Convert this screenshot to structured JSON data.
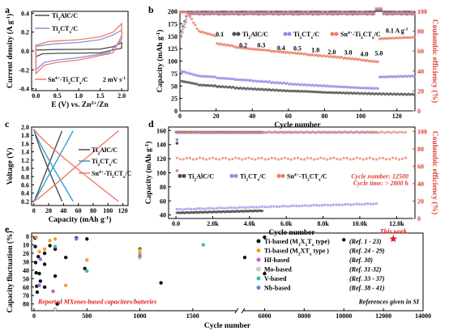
{
  "colors": {
    "ti2alc": "#4d4d4d",
    "ti2ctx": "#8e8ee6",
    "sn": "#ef7b68",
    "coulombic": "#e23b2f",
    "blue_curve": "#2a9fd8",
    "this_work": "#e41a1c",
    "c_ti_m3x2": "#111111",
    "c_ti_m2x": "#f0a030",
    "c_hf": "#b066c8",
    "c_mo": "#d0d0d0",
    "c_v": "#33c0b0",
    "c_nb": "#7a7ad8"
  },
  "chart_data": [
    {
      "panel": "a",
      "type": "line",
      "xlabel": "E (V) vs. Zn",
      "xlabel_sup": "2+",
      "xlabel_tail": "/Zn",
      "ylabel": "Current density (A g",
      "ylabel_sup": "-1",
      "ylabel_tail": ")",
      "xlim": [
        -0.1,
        2.15
      ],
      "ylim": [
        -0.42,
        0.42
      ],
      "xticks": [
        0.0,
        0.5,
        1.0,
        1.5,
        2.0
      ],
      "yticks": [
        -0.4,
        -0.2,
        0.0,
        0.2,
        0.4
      ],
      "ytick_labels": [
        "-0.4",
        "-0.2",
        "0.0",
        "0.2",
        "0.4"
      ],
      "xtick_labels": [
        "0.0",
        "0.5",
        "1.0",
        "1.5",
        "2.0"
      ],
      "annotation": "2 mV s",
      "annotation_sup": "-1",
      "legend": [
        {
          "m": "Ti",
          "s1": "2",
          "m2": "AlC/C",
          "s2": "",
          "m3": "",
          "color": "#4d4d4d"
        },
        {
          "m": "Ti",
          "s1": "2",
          "m2": "CT",
          "s2": "x",
          "m3": "/C",
          "color": "#8e8ee6"
        },
        {
          "m": "Sn",
          "sup": "4+",
          "m1": "-Ti",
          "s1": "2",
          "m2": "CT",
          "s2": "x",
          "m3": "/C",
          "color": "#ef7b68"
        }
      ],
      "series": [
        {
          "name": "Ti2AlC/C",
          "upper": [
            [
              0.0,
              0.01
            ],
            [
              0.5,
              0.015
            ],
            [
              1.0,
              0.017
            ],
            [
              1.5,
              0.02
            ],
            [
              1.8,
              0.045
            ],
            [
              2.0,
              0.09
            ]
          ],
          "lower": [
            [
              2.0,
              0.03
            ],
            [
              1.5,
              -0.02
            ],
            [
              1.0,
              -0.022
            ],
            [
              0.5,
              -0.025
            ],
            [
              0.15,
              -0.03
            ],
            [
              0.0,
              -0.06
            ]
          ]
        },
        {
          "name": "Ti2CTx/C",
          "upper": [
            [
              0.0,
              0.05
            ],
            [
              0.4,
              0.075
            ],
            [
              1.0,
              0.09
            ],
            [
              1.5,
              0.12
            ],
            [
              1.8,
              0.17
            ],
            [
              2.0,
              0.22
            ]
          ],
          "lower": [
            [
              2.0,
              0.12
            ],
            [
              1.7,
              -0.02
            ],
            [
              1.0,
              -0.07
            ],
            [
              0.5,
              -0.095
            ],
            [
              0.2,
              -0.12
            ],
            [
              0.0,
              -0.2
            ]
          ]
        },
        {
          "name": "Sn4+-Ti2CTx/C",
          "upper": [
            [
              0.0,
              0.06
            ],
            [
              0.3,
              0.1
            ],
            [
              1.0,
              0.12
            ],
            [
              1.5,
              0.15
            ],
            [
              1.8,
              0.2
            ],
            [
              2.0,
              0.29
            ]
          ],
          "lower": [
            [
              2.0,
              0.16
            ],
            [
              1.8,
              -0.02
            ],
            [
              1.0,
              -0.095
            ],
            [
              0.5,
              -0.12
            ],
            [
              0.2,
              -0.15
            ],
            [
              0.0,
              -0.24
            ]
          ]
        }
      ]
    },
    {
      "panel": "b",
      "type": "scatter",
      "xlabel": "Cycle number",
      "ylabel": "Capacity (mAh g",
      "ylabel_sup": "-1",
      "ylabel_tail": ")",
      "y2label": "Coulombic efficiency (%)",
      "xlim": [
        0,
        130
      ],
      "ylim": [
        0,
        200
      ],
      "y2lim": [
        0,
        100
      ],
      "xticks": [
        0,
        20,
        40,
        60,
        80,
        100,
        120
      ],
      "yticks": [
        0,
        25,
        50,
        75,
        100,
        125,
        150,
        175,
        200
      ],
      "y2ticks": [
        0,
        20,
        40,
        60,
        80,
        100
      ],
      "rate_labels": [
        {
          "x": 22,
          "y": 150,
          "t": "0.1"
        },
        {
          "x": 35,
          "y": 128,
          "t": "0.2"
        },
        {
          "x": 45,
          "y": 128,
          "t": "0.3"
        },
        {
          "x": 56,
          "y": 122,
          "t": "0.4"
        },
        {
          "x": 65,
          "y": 121,
          "t": "0.5"
        },
        {
          "x": 75,
          "y": 118,
          "t": "1.0"
        },
        {
          "x": 84,
          "y": 114,
          "t": "2.0"
        },
        {
          "x": 93,
          "y": 113,
          "t": "3.0"
        },
        {
          "x": 102,
          "y": 110,
          "t": "4.0"
        },
        {
          "x": 110,
          "y": 111,
          "t": "5.0"
        },
        {
          "x": 120,
          "y": 157,
          "t": "0.1 A g"
        }
      ],
      "rate_unit_sup": "-1",
      "legend": [
        {
          "m": "Ti",
          "s1": "2",
          "m2": "AlC/C",
          "s2": "",
          "m3": "",
          "color": "#4d4d4d"
        },
        {
          "m": "Ti",
          "s1": "2",
          "m2": "CT",
          "s2": "x",
          "m3": "/C",
          "color": "#8e8ee6"
        },
        {
          "m": "Sn",
          "sup": "4+",
          "m1": "-Ti",
          "s1": "2",
          "m2": "CT",
          "s2": "x",
          "m3": "/C",
          "color": "#ef7b68"
        }
      ],
      "series": [
        {
          "name": "Ti2AlC/C",
          "segments": [
            [
              0,
              60,
              53
            ],
            [
              10,
              52,
              50
            ],
            [
              20,
              49,
              47
            ],
            [
              30,
              46,
              44
            ],
            [
              40,
              44,
              42
            ],
            [
              50,
              42,
              40
            ],
            [
              60,
              40,
              39
            ],
            [
              70,
              39,
              37
            ],
            [
              80,
              37,
              36
            ],
            [
              90,
              36,
              35
            ],
            [
              100,
              35,
              34
            ],
            [
              110,
              34,
              33
            ],
            [
              130,
              34,
              34
            ]
          ]
        },
        {
          "name": "Ti2CTx/C",
          "segments": [
            [
              0,
              80,
              70
            ],
            [
              10,
              70,
              68
            ],
            [
              20,
              66,
              64
            ],
            [
              30,
              63,
              61
            ],
            [
              40,
              60,
              58
            ],
            [
              50,
              57,
              55
            ],
            [
              60,
              54,
              52
            ],
            [
              70,
              52,
              50
            ],
            [
              80,
              50,
              48
            ],
            [
              90,
              48,
              46
            ],
            [
              100,
              46,
              45
            ],
            [
              110,
              68,
              70
            ],
            [
              130,
              70,
              70
            ]
          ]
        },
        {
          "name": "Sn4+-Ti2CTx/C",
          "segments": [
            [
              0,
              220,
              160
            ],
            [
              10,
              160,
              150
            ],
            [
              20,
              135,
              130
            ],
            [
              30,
              128,
              124
            ],
            [
              40,
              124,
              121
            ],
            [
              50,
              120,
              117
            ],
            [
              60,
              117,
              114
            ],
            [
              70,
              113,
              110
            ],
            [
              80,
              110,
              107
            ],
            [
              90,
              106,
              103
            ],
            [
              100,
              102,
              98
            ],
            [
              110,
              145,
              148
            ],
            [
              130,
              148,
              148
            ]
          ]
        }
      ],
      "ce_level": 98
    },
    {
      "panel": "c",
      "type": "line",
      "xlabel": "Capacity (mAh g",
      "xlabel_sup": "-1",
      "xlabel_tail": ")",
      "ylabel": "Voltage (V)",
      "xlim": [
        -3,
        127
      ],
      "ylim": [
        0.1,
        2.0
      ],
      "xticks": [
        0,
        20,
        40,
        60,
        80,
        100,
        120
      ],
      "yticks": [
        0.2,
        0.4,
        0.6,
        0.8,
        1.0,
        1.2,
        1.4,
        1.6,
        1.8,
        2.0
      ],
      "legend": [
        {
          "m": "Ti",
          "s1": "2",
          "m2": "AlC/C",
          "s2": "",
          "m3": "",
          "color": "#4d4d4d"
        },
        {
          "m": "Ti",
          "s1": "2",
          "m2": "CT",
          "s2": "x",
          "m3": "/C",
          "color": "#2a9fd8"
        },
        {
          "m": "Sn",
          "sup": "4+",
          "m1": "-Ti",
          "s1": "2",
          "m2": "CT",
          "s2": "x",
          "m3": "/C",
          "color": "#ef7b68"
        }
      ],
      "series": [
        {
          "name": "Ti2AlC/C",
          "cap": 38,
          "color": "#4d4d4d"
        },
        {
          "name": "Ti2CTx/C",
          "cap": 53,
          "color": "#2a9fd8"
        },
        {
          "name": "Sn4+-Ti2CTx/C",
          "cap": 114,
          "color": "#ef7b68"
        }
      ]
    },
    {
      "panel": "d",
      "type": "scatter",
      "xlabel": "Cycle number",
      "ylabel": "Capacity (mAh g",
      "ylabel_sup": "-1",
      "ylabel_tail": ")",
      "y2label": "Coulombic efficiency (%)",
      "xlim": [
        -400,
        13000
      ],
      "ylim": [
        35,
        165
      ],
      "y2lim": [
        0,
        105
      ],
      "xticks": [
        0,
        2000,
        4000,
        6000,
        8000,
        10000,
        12000
      ],
      "xtick_labels": [
        "0.0",
        "2.0k",
        "4.0k",
        "6.0k",
        "8.0k",
        "10.0k",
        "12.0k"
      ],
      "yticks": [
        40,
        60,
        80,
        100,
        120,
        140,
        160
      ],
      "y2ticks": [
        0,
        20,
        40,
        60,
        80,
        100
      ],
      "annotations": [
        "Cycle number: 12500",
        "Cycle time: > 2800 h"
      ],
      "legend": [
        {
          "m": "Ti",
          "s1": "2",
          "m2": "AlC/C",
          "s2": "",
          "m3": "",
          "color": "#4d4d4d"
        },
        {
          "m": "Ti",
          "s1": "2",
          "m2": "CT",
          "s2": "x",
          "m3": "/C",
          "color": "#8e8ee6"
        },
        {
          "m": "Sn",
          "sup": "4+",
          "m1": "-Ti",
          "s1": "2",
          "m2": "CT",
          "s2": "x",
          "m3": "/C",
          "color": "#ef7b68"
        }
      ],
      "series": [
        {
          "name": "Ti2AlC/C",
          "from": [
            50,
            43
          ],
          "to": [
            4700,
            46
          ]
        },
        {
          "name": "Ti2CTx/C",
          "from": [
            50,
            48
          ],
          "to": [
            10900,
            56
          ]
        },
        {
          "name": "Sn4+-Ti2CTx/C",
          "from": [
            50,
            120
          ],
          "to": [
            12500,
            120
          ]
        }
      ]
    },
    {
      "panel": "e",
      "type": "scatter",
      "xlabel": "Cycle number",
      "ylabel": "Capacity fluctuation (%)",
      "xticks_left": [
        0,
        500,
        1000,
        1500
      ],
      "xticks_right": [
        6000,
        8000,
        10000,
        12000,
        14000
      ],
      "yticks": [
        0,
        10,
        20,
        30,
        40,
        50,
        60,
        70,
        80
      ],
      "this_work_label": "This work",
      "reported_label": "Reported MXenes-based capacitors/batteries",
      "references_label": "References given in SI",
      "this_work": {
        "x": 12500,
        "y": 3
      },
      "legend": [
        {
          "pre": "Ti-based (M",
          "s1": "3",
          "mid": "X",
          "s2": "2",
          "mid2": "T",
          "s3": "x",
          "post": " type)",
          "ref": "(Ref. 1 - 23)",
          "color": "#111111"
        },
        {
          "pre": "Ti-based (M",
          "s1": "2",
          "mid": "XT",
          "s2": "x",
          "mid2": "",
          "s3": "",
          "post": " type )",
          "ref": "(Ref. 24 - 29)",
          "color": "#f0a030"
        },
        {
          "pre": "Hf-based",
          "s1": "",
          "mid": "",
          "s2": "",
          "mid2": "",
          "s3": "",
          "post": "",
          "ref": "(Ref. 30)",
          "color": "#b066c8"
        },
        {
          "pre": "Mo-based",
          "s1": "",
          "mid": "",
          "s2": "",
          "mid2": "",
          "s3": "",
          "post": "",
          "ref": "(Ref. 31-32)",
          "color": "#d0d0d0"
        },
        {
          "pre": "V-based",
          "s1": "",
          "mid": "",
          "s2": "",
          "mid2": "",
          "s3": "",
          "post": "",
          "ref": "(Ref. 33 - 37)",
          "color": "#33c0b0"
        },
        {
          "pre": "Nb-based",
          "s1": "",
          "mid": "",
          "s2": "",
          "mid2": "",
          "s3": "",
          "post": "",
          "ref": "(Ref. 38 - 41)",
          "color": "#7a7ad8"
        }
      ],
      "points": [
        {
          "x": 10,
          "y": 2,
          "c": "c_ti_m3x2"
        },
        {
          "x": 12,
          "y": 12,
          "c": "c_ti_m3x2"
        },
        {
          "x": 15,
          "y": 31,
          "c": "c_ti_m3x2"
        },
        {
          "x": 20,
          "y": 43,
          "c": "c_ti_m3x2"
        },
        {
          "x": 25,
          "y": 59,
          "c": "c_ti_m3x2"
        },
        {
          "x": 30,
          "y": 66,
          "c": "c_ti_m3x2"
        },
        {
          "x": 40,
          "y": 24,
          "c": "c_ti_m3x2"
        },
        {
          "x": 50,
          "y": 44,
          "c": "c_ti_m3x2"
        },
        {
          "x": 60,
          "y": 53,
          "c": "c_ti_m3x2"
        },
        {
          "x": 100,
          "y": 20,
          "c": "c_ti_m3x2"
        },
        {
          "x": 100,
          "y": 33,
          "c": "c_ti_m3x2"
        },
        {
          "x": 100,
          "y": 60,
          "c": "c_ti_m3x2"
        },
        {
          "x": 150,
          "y": 11,
          "c": "c_ti_m3x2"
        },
        {
          "x": 200,
          "y": 15,
          "c": "c_ti_m3x2"
        },
        {
          "x": 200,
          "y": 47,
          "c": "c_ti_m3x2"
        },
        {
          "x": 220,
          "y": 80,
          "c": "c_ti_m3x2"
        },
        {
          "x": 300,
          "y": 25,
          "c": "c_ti_m3x2"
        },
        {
          "x": 400,
          "y": 2,
          "c": "c_ti_m3x2"
        },
        {
          "x": 480,
          "y": 38,
          "c": "c_ti_m3x2"
        },
        {
          "x": 500,
          "y": 3,
          "c": "c_ti_m3x2"
        },
        {
          "x": 1000,
          "y": 15,
          "c": "c_ti_m3x2"
        },
        {
          "x": 1200,
          "y": 55,
          "c": "c_ti_m3x2"
        },
        {
          "x": 5000,
          "y": 25,
          "c": "c_ti_m3x2"
        },
        {
          "x": 6000,
          "y": 1,
          "c": "c_ti_m3x2"
        },
        {
          "x": 6000,
          "y": 44,
          "c": "c_ti_m3x2"
        },
        {
          "x": 10000,
          "y": 4,
          "c": "c_ti_m3x2"
        },
        {
          "x": 20,
          "y": 1,
          "c": "c_ti_m2x"
        },
        {
          "x": 50,
          "y": 18,
          "c": "c_ti_m2x"
        },
        {
          "x": 100,
          "y": 15,
          "c": "c_ti_m2x"
        },
        {
          "x": 150,
          "y": 5,
          "c": "c_ti_m2x"
        },
        {
          "x": 200,
          "y": 3,
          "c": "c_ti_m2x"
        },
        {
          "x": 300,
          "y": 58,
          "c": "c_ti_m2x"
        },
        {
          "x": 500,
          "y": 28,
          "c": "c_ti_m2x"
        },
        {
          "x": 1000,
          "y": 16,
          "c": "c_ti_m2x"
        },
        {
          "x": 1000,
          "y": 20,
          "c": "c_ti_m2x"
        },
        {
          "x": 50,
          "y": 58,
          "c": "c_hf"
        },
        {
          "x": 180,
          "y": 65,
          "c": "c_hf"
        },
        {
          "x": 200,
          "y": 86,
          "c": "c_mo"
        },
        {
          "x": 1000,
          "y": 25,
          "c": "c_mo"
        },
        {
          "x": 200,
          "y": 12,
          "c": "c_v"
        },
        {
          "x": 500,
          "y": 41,
          "c": "c_v"
        },
        {
          "x": 1600,
          "y": 10,
          "c": "c_v"
        },
        {
          "x": 400,
          "y": 3,
          "c": "c_nb"
        },
        {
          "x": 60,
          "y": 27,
          "c": "c_nb"
        },
        {
          "x": 1000,
          "y": 23,
          "c": "c_nb"
        }
      ]
    }
  ]
}
